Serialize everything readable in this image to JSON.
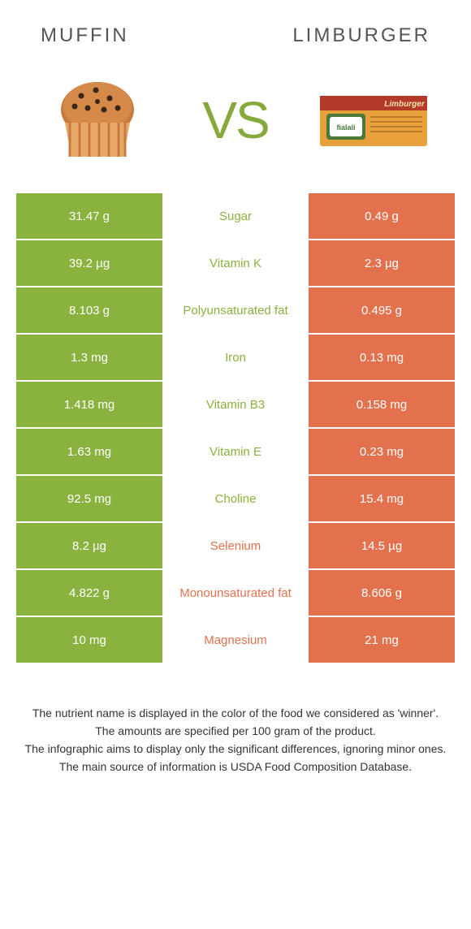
{
  "colors": {
    "green": "#8ab23e",
    "orange": "#e3714e",
    "green_text": "#8ab23e",
    "orange_text": "#e3714e",
    "vs": "#85a93c"
  },
  "header": {
    "left": "Muffin",
    "right": "Limburger",
    "vs": "VS"
  },
  "rows": [
    {
      "left": "31.47 g",
      "mid": "Sugar",
      "right": "0.49 g",
      "winner": "left"
    },
    {
      "left": "39.2 µg",
      "mid": "Vitamin K",
      "right": "2.3 µg",
      "winner": "left"
    },
    {
      "left": "8.103 g",
      "mid": "Polyunsaturated fat",
      "right": "0.495 g",
      "winner": "left"
    },
    {
      "left": "1.3 mg",
      "mid": "Iron",
      "right": "0.13 mg",
      "winner": "left"
    },
    {
      "left": "1.418 mg",
      "mid": "Vitamin B3",
      "right": "0.158 mg",
      "winner": "left"
    },
    {
      "left": "1.63 mg",
      "mid": "Vitamin E",
      "right": "0.23 mg",
      "winner": "left"
    },
    {
      "left": "92.5 mg",
      "mid": "Choline",
      "right": "15.4 mg",
      "winner": "left"
    },
    {
      "left": "8.2 µg",
      "mid": "Selenium",
      "right": "14.5 µg",
      "winner": "right"
    },
    {
      "left": "4.822 g",
      "mid": "Monounsaturated fat",
      "right": "8.606 g",
      "winner": "right"
    },
    {
      "left": "10 mg",
      "mid": "Magnesium",
      "right": "21 mg",
      "winner": "right"
    }
  ],
  "footer": {
    "line1": "The nutrient name is displayed in the color of the food we considered as 'winner'.",
    "line2": "The amounts are specified per 100 gram of the product.",
    "line3": "The infographic aims to display only the significant differences, ignoring minor ones.",
    "line4": "The main source of information is USDA Food Composition Database."
  }
}
